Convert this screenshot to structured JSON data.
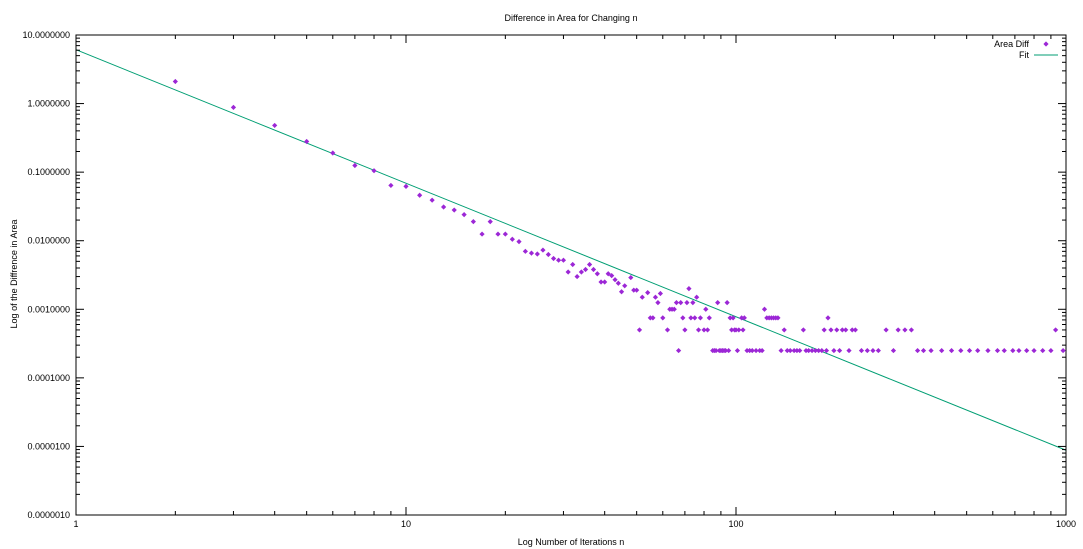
{
  "chart_data": {
    "type": "scatter",
    "title": "Difference in Area for Changing n",
    "xlabel": "Log Number of Iterations n",
    "ylabel": "Log of the Diffrence in Area",
    "x_scale": "log",
    "y_scale": "log",
    "xlim": [
      1,
      1000
    ],
    "ylim": [
      1e-06,
      10
    ],
    "x_ticks": [
      1,
      10,
      100,
      1000
    ],
    "x_tick_labels": [
      "1",
      "10",
      "100",
      "1000"
    ],
    "y_ticks": [
      10,
      1,
      0.1,
      0.01,
      0.001,
      0.0001,
      1e-05,
      1e-06
    ],
    "y_tick_labels": [
      "10.0000000",
      "1.0000000",
      "0.1000000",
      "0.0100000",
      "0.0010000",
      "0.0001000",
      "0.0000100",
      "0.0000010"
    ],
    "grid": false,
    "legend_position": "top-right",
    "colors": {
      "points": "#9c27d6",
      "fit": "#009e73"
    },
    "series": [
      {
        "name": "Area Diff",
        "kind": "points",
        "points": [
          [
            2,
            2.1
          ],
          [
            3,
            0.88
          ],
          [
            4,
            0.48
          ],
          [
            5,
            0.28
          ],
          [
            6,
            0.19
          ],
          [
            7,
            0.125
          ],
          [
            8,
            0.105
          ],
          [
            9,
            0.064
          ],
          [
            10,
            0.062
          ],
          [
            11,
            0.046
          ],
          [
            12,
            0.039
          ],
          [
            13,
            0.031
          ],
          [
            14,
            0.028
          ],
          [
            15,
            0.024
          ],
          [
            16,
            0.019
          ],
          [
            17,
            0.0125
          ],
          [
            18,
            0.019
          ],
          [
            19,
            0.0125
          ],
          [
            20,
            0.0125
          ],
          [
            21,
            0.0105
          ],
          [
            22,
            0.0097
          ],
          [
            23,
            0.007
          ],
          [
            24,
            0.0066
          ],
          [
            25,
            0.0064
          ],
          [
            26,
            0.0073
          ],
          [
            27,
            0.0063
          ],
          [
            28,
            0.0055
          ],
          [
            29,
            0.0052
          ],
          [
            30,
            0.0052
          ],
          [
            31,
            0.0035
          ],
          [
            32,
            0.0045
          ],
          [
            33,
            0.003
          ],
          [
            34,
            0.0035
          ],
          [
            35,
            0.0038
          ],
          [
            36,
            0.0045
          ],
          [
            37,
            0.0038
          ],
          [
            38,
            0.0033
          ],
          [
            39,
            0.0025
          ],
          [
            40,
            0.0025
          ],
          [
            41,
            0.0033
          ],
          [
            42,
            0.0031
          ],
          [
            43,
            0.0027
          ],
          [
            44,
            0.0024
          ],
          [
            45,
            0.0018
          ],
          [
            46,
            0.0022
          ],
          [
            48,
            0.0029
          ],
          [
            49,
            0.0019
          ],
          [
            50,
            0.0019
          ],
          [
            51,
            0.0005
          ],
          [
            52,
            0.0015
          ],
          [
            54,
            0.00175
          ],
          [
            55,
            0.00075
          ],
          [
            56,
            0.00075
          ],
          [
            57,
            0.0015
          ],
          [
            58,
            0.00125
          ],
          [
            59,
            0.0017
          ],
          [
            60,
            0.00075
          ],
          [
            62,
            0.0005
          ],
          [
            63,
            0.001
          ],
          [
            64,
            0.001
          ],
          [
            65,
            0.001
          ],
          [
            66,
            0.00125
          ],
          [
            67,
            0.00025
          ],
          [
            68,
            0.00125
          ],
          [
            69,
            0.00075
          ],
          [
            70,
            0.0005
          ],
          [
            71,
            0.00125
          ],
          [
            72,
            0.002
          ],
          [
            73,
            0.00075
          ],
          [
            74,
            0.00125
          ],
          [
            75,
            0.00075
          ],
          [
            76,
            0.0015
          ],
          [
            77,
            0.0005
          ],
          [
            78,
            0.00075
          ],
          [
            80,
            0.0005
          ],
          [
            81,
            0.001
          ],
          [
            82,
            0.0005
          ],
          [
            83,
            0.00075
          ],
          [
            85,
            0.00025
          ],
          [
            86,
            0.00025
          ],
          [
            87,
            0.00025
          ],
          [
            88,
            0.00125
          ],
          [
            89,
            0.00025
          ],
          [
            90,
            0.00025
          ],
          [
            91,
            0.00025
          ],
          [
            92,
            0.00025
          ],
          [
            93,
            0.00025
          ],
          [
            94,
            0.00125
          ],
          [
            95,
            0.00025
          ],
          [
            96,
            0.00075
          ],
          [
            97,
            0.0005
          ],
          [
            98,
            0.00075
          ],
          [
            99,
            0.0005
          ],
          [
            100,
            0.0005
          ],
          [
            101,
            0.00025
          ],
          [
            102,
            0.0005
          ],
          [
            104,
            0.00075
          ],
          [
            105,
            0.0005
          ],
          [
            106,
            0.00075
          ],
          [
            108,
            0.00025
          ],
          [
            110,
            0.00025
          ],
          [
            112,
            0.00025
          ],
          [
            115,
            0.00025
          ],
          [
            118,
            0.00025
          ],
          [
            120,
            0.00025
          ],
          [
            122,
            0.001
          ],
          [
            124,
            0.00075
          ],
          [
            126,
            0.00075
          ],
          [
            128,
            0.00075
          ],
          [
            130,
            0.00075
          ],
          [
            132,
            0.00075
          ],
          [
            134,
            0.00075
          ],
          [
            137,
            0.00025
          ],
          [
            140,
            0.0005
          ],
          [
            143,
            0.00025
          ],
          [
            146,
            0.00025
          ],
          [
            150,
            0.00025
          ],
          [
            153,
            0.00025
          ],
          [
            156,
            0.00025
          ],
          [
            160,
            0.0005
          ],
          [
            163,
            0.00025
          ],
          [
            166,
            0.00025
          ],
          [
            170,
            0.00025
          ],
          [
            174,
            0.00025
          ],
          [
            178,
            0.00025
          ],
          [
            182,
            0.00025
          ],
          [
            185,
            0.0005
          ],
          [
            188,
            0.00025
          ],
          [
            190,
            0.00075
          ],
          [
            194,
            0.0005
          ],
          [
            198,
            0.00025
          ],
          [
            202,
            0.0005
          ],
          [
            206,
            0.00025
          ],
          [
            210,
            0.0005
          ],
          [
            215,
            0.0005
          ],
          [
            220,
            0.00025
          ],
          [
            225,
            0.0005
          ],
          [
            230,
            0.0005
          ],
          [
            240,
            0.00025
          ],
          [
            250,
            0.00025
          ],
          [
            260,
            0.00025
          ],
          [
            270,
            0.00025
          ],
          [
            285,
            0.0005
          ],
          [
            300,
            0.00025
          ],
          [
            310,
            0.0005
          ],
          [
            325,
            0.0005
          ],
          [
            340,
            0.0005
          ],
          [
            355,
            0.00025
          ],
          [
            370,
            0.00025
          ],
          [
            390,
            0.00025
          ],
          [
            420,
            0.00025
          ],
          [
            450,
            0.00025
          ],
          [
            480,
            0.00025
          ],
          [
            510,
            0.00025
          ],
          [
            540,
            0.00025
          ],
          [
            580,
            0.00025
          ],
          [
            620,
            0.00025
          ],
          [
            650,
            0.00025
          ],
          [
            690,
            0.00025
          ],
          [
            720,
            0.00025
          ],
          [
            760,
            0.00025
          ],
          [
            800,
            0.00025
          ],
          [
            850,
            0.00025
          ],
          [
            900,
            0.00025
          ],
          [
            930,
            0.0005
          ],
          [
            980,
            0.00025
          ]
        ]
      },
      {
        "name": "Fit",
        "kind": "line",
        "points": [
          [
            1,
            6.1
          ],
          [
            1000,
            8.8e-06
          ]
        ]
      }
    ]
  }
}
